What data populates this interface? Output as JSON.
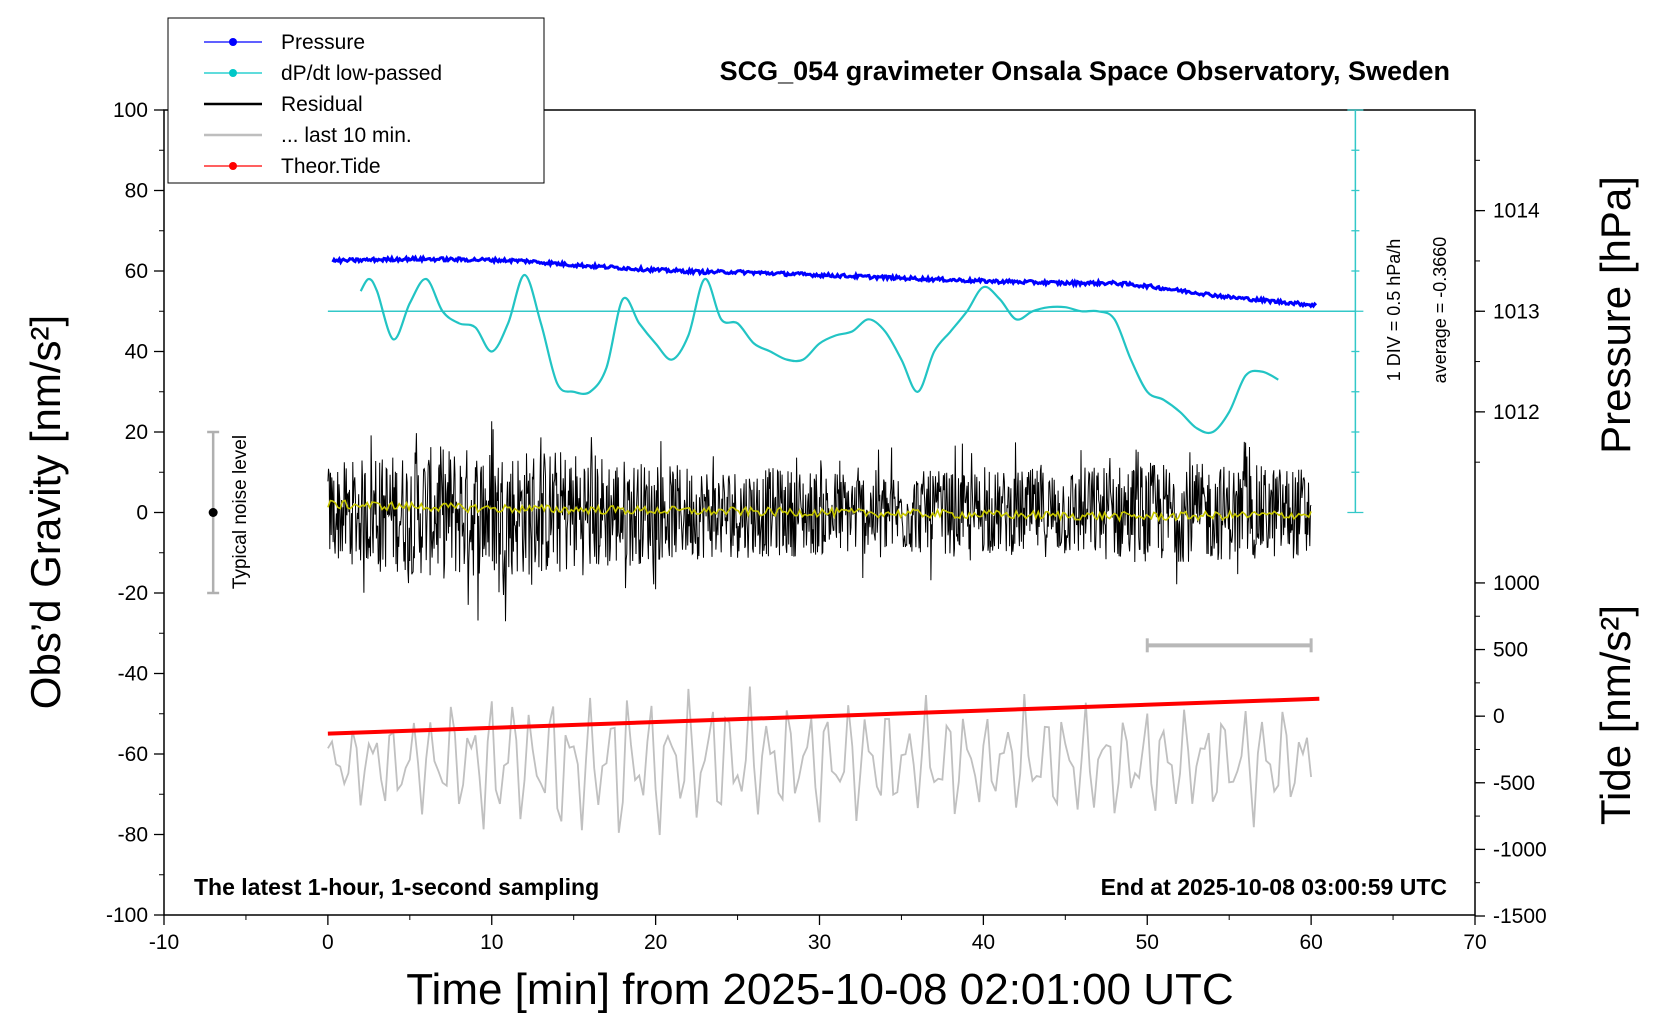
{
  "chart_data": {
    "type": "line",
    "title": "SCG_054 gravimeter Onsala Space Observatory, Sweden",
    "xlabel": "Time [min] from 2025-10-08 02:01:00 UTC",
    "ylabel": "Obs’d Gravity [nm/s²]",
    "ylabel_right_top": "Pressure [hPa]",
    "ylabel_right_bottom": "Tide [nm/s²]",
    "xlim": [
      -10,
      70
    ],
    "ylim": [
      -100,
      100
    ],
    "x_ticks": [
      "-10",
      "0",
      "10",
      "20",
      "30",
      "40",
      "50",
      "60",
      "70"
    ],
    "y_ticks": [
      "-100",
      "-80",
      "-60",
      "-40",
      "-20",
      "0",
      "20",
      "40",
      "60",
      "80",
      "100"
    ],
    "pressure_ticks": [
      "1012",
      "1013",
      "1014"
    ],
    "tide_ticks": [
      "-1500",
      "-1000",
      "-500",
      "0",
      "500",
      "1000"
    ],
    "grid": false,
    "legend_position": "top-left",
    "legend": [
      {
        "label": "Pressure",
        "color": "#0000ff",
        "marker": true
      },
      {
        "label": "dP/dt low-passed",
        "color": "#00c8c8",
        "marker": true
      },
      {
        "label": "Residual",
        "color": "#000000",
        "marker": false
      },
      {
        "label": "... last 10 min.",
        "color": "#bebebe",
        "marker": false
      },
      {
        "label": "Theor.Tide",
        "color": "#ff0000",
        "marker": true
      }
    ],
    "dpdt_scale_label": "1 DIV = 0.5 hPa/h",
    "dpdt_average_label": "average = -0.3660",
    "noise_label": "Typical noise level",
    "note_left": "The latest 1-hour, 1-second sampling",
    "note_right": "End at 2025-10-08 03:00:59 UTC",
    "series": [
      {
        "name": "Pressure",
        "units": "hPa",
        "x": [
          0,
          5,
          10,
          12,
          15,
          20,
          23,
          25,
          30,
          35,
          40,
          45,
          48,
          50,
          55,
          60.3
        ],
        "values": [
          1013.5,
          1013.52,
          1013.51,
          1013.5,
          1013.46,
          1013.41,
          1013.39,
          1013.39,
          1013.36,
          1013.33,
          1013.3,
          1013.28,
          1013.28,
          1013.25,
          1013.14,
          1013.06
        ]
      },
      {
        "name": "dP/dt low-passed",
        "units": "nm/s² (plot units)",
        "x": [
          2,
          2.5,
          3,
          4,
          5,
          6,
          7,
          8,
          9,
          10,
          11,
          12,
          13,
          14,
          15,
          16,
          17,
          18,
          19,
          20,
          21,
          22,
          23,
          24,
          25,
          26,
          27,
          28,
          29,
          30,
          31,
          32,
          33,
          34,
          35,
          36,
          37,
          38,
          39,
          40,
          41,
          42,
          43,
          44,
          45,
          46,
          47,
          48,
          49,
          50,
          51,
          52,
          53,
          54,
          55,
          56,
          57,
          58
        ],
        "values": [
          55,
          58,
          55,
          43,
          52,
          58,
          50,
          47,
          46,
          40,
          47,
          59,
          47,
          32,
          30,
          30,
          36,
          53,
          47,
          42,
          38,
          44,
          58,
          48,
          47,
          42,
          40,
          38,
          38,
          42,
          44,
          45,
          48,
          45,
          38,
          30,
          40,
          45,
          50,
          56,
          53,
          48,
          50,
          51,
          51,
          50,
          50,
          48,
          38,
          30,
          28,
          25,
          21,
          20,
          25,
          34,
          35,
          33
        ]
      },
      {
        "name": "dP/dt average",
        "units": "nm/s² (plot units)",
        "x": [
          0,
          62.7
        ],
        "values": [
          50,
          50
        ]
      },
      {
        "name": "Residual",
        "units": "nm/s²",
        "x": [
          0,
          7,
          11,
          16,
          20,
          30,
          40,
          50,
          60
        ],
        "values": [
          0,
          0,
          0,
          0,
          0,
          0,
          0,
          0,
          0
        ],
        "envelope": [
          [
            0,
            20
          ],
          [
            7,
            28
          ],
          [
            11,
            27
          ],
          [
            16,
            26
          ],
          [
            20,
            20
          ],
          [
            30,
            18
          ],
          [
            40,
            17
          ],
          [
            50,
            21
          ],
          [
            60,
            19
          ]
        ]
      },
      {
        "name": "Residual smoothed",
        "units": "nm/s²",
        "x": [
          0,
          10,
          20,
          30,
          40,
          50,
          60
        ],
        "values": [
          2,
          1,
          0.5,
          0,
          -0.5,
          -1,
          -0.5
        ]
      },
      {
        "name": "... last 10 min.",
        "units": "nm/s² (offset -60)",
        "x": [
          0,
          60
        ],
        "values": [
          -62,
          -62
        ],
        "envelope": [
          [
            0,
            12
          ],
          [
            12,
            25
          ],
          [
            30,
            20
          ],
          [
            60,
            18
          ]
        ]
      },
      {
        "name": "Theor.Tide",
        "units": "nm/s²",
        "x": [
          0,
          60.5
        ],
        "values": [
          -131,
          131
        ]
      }
    ]
  }
}
